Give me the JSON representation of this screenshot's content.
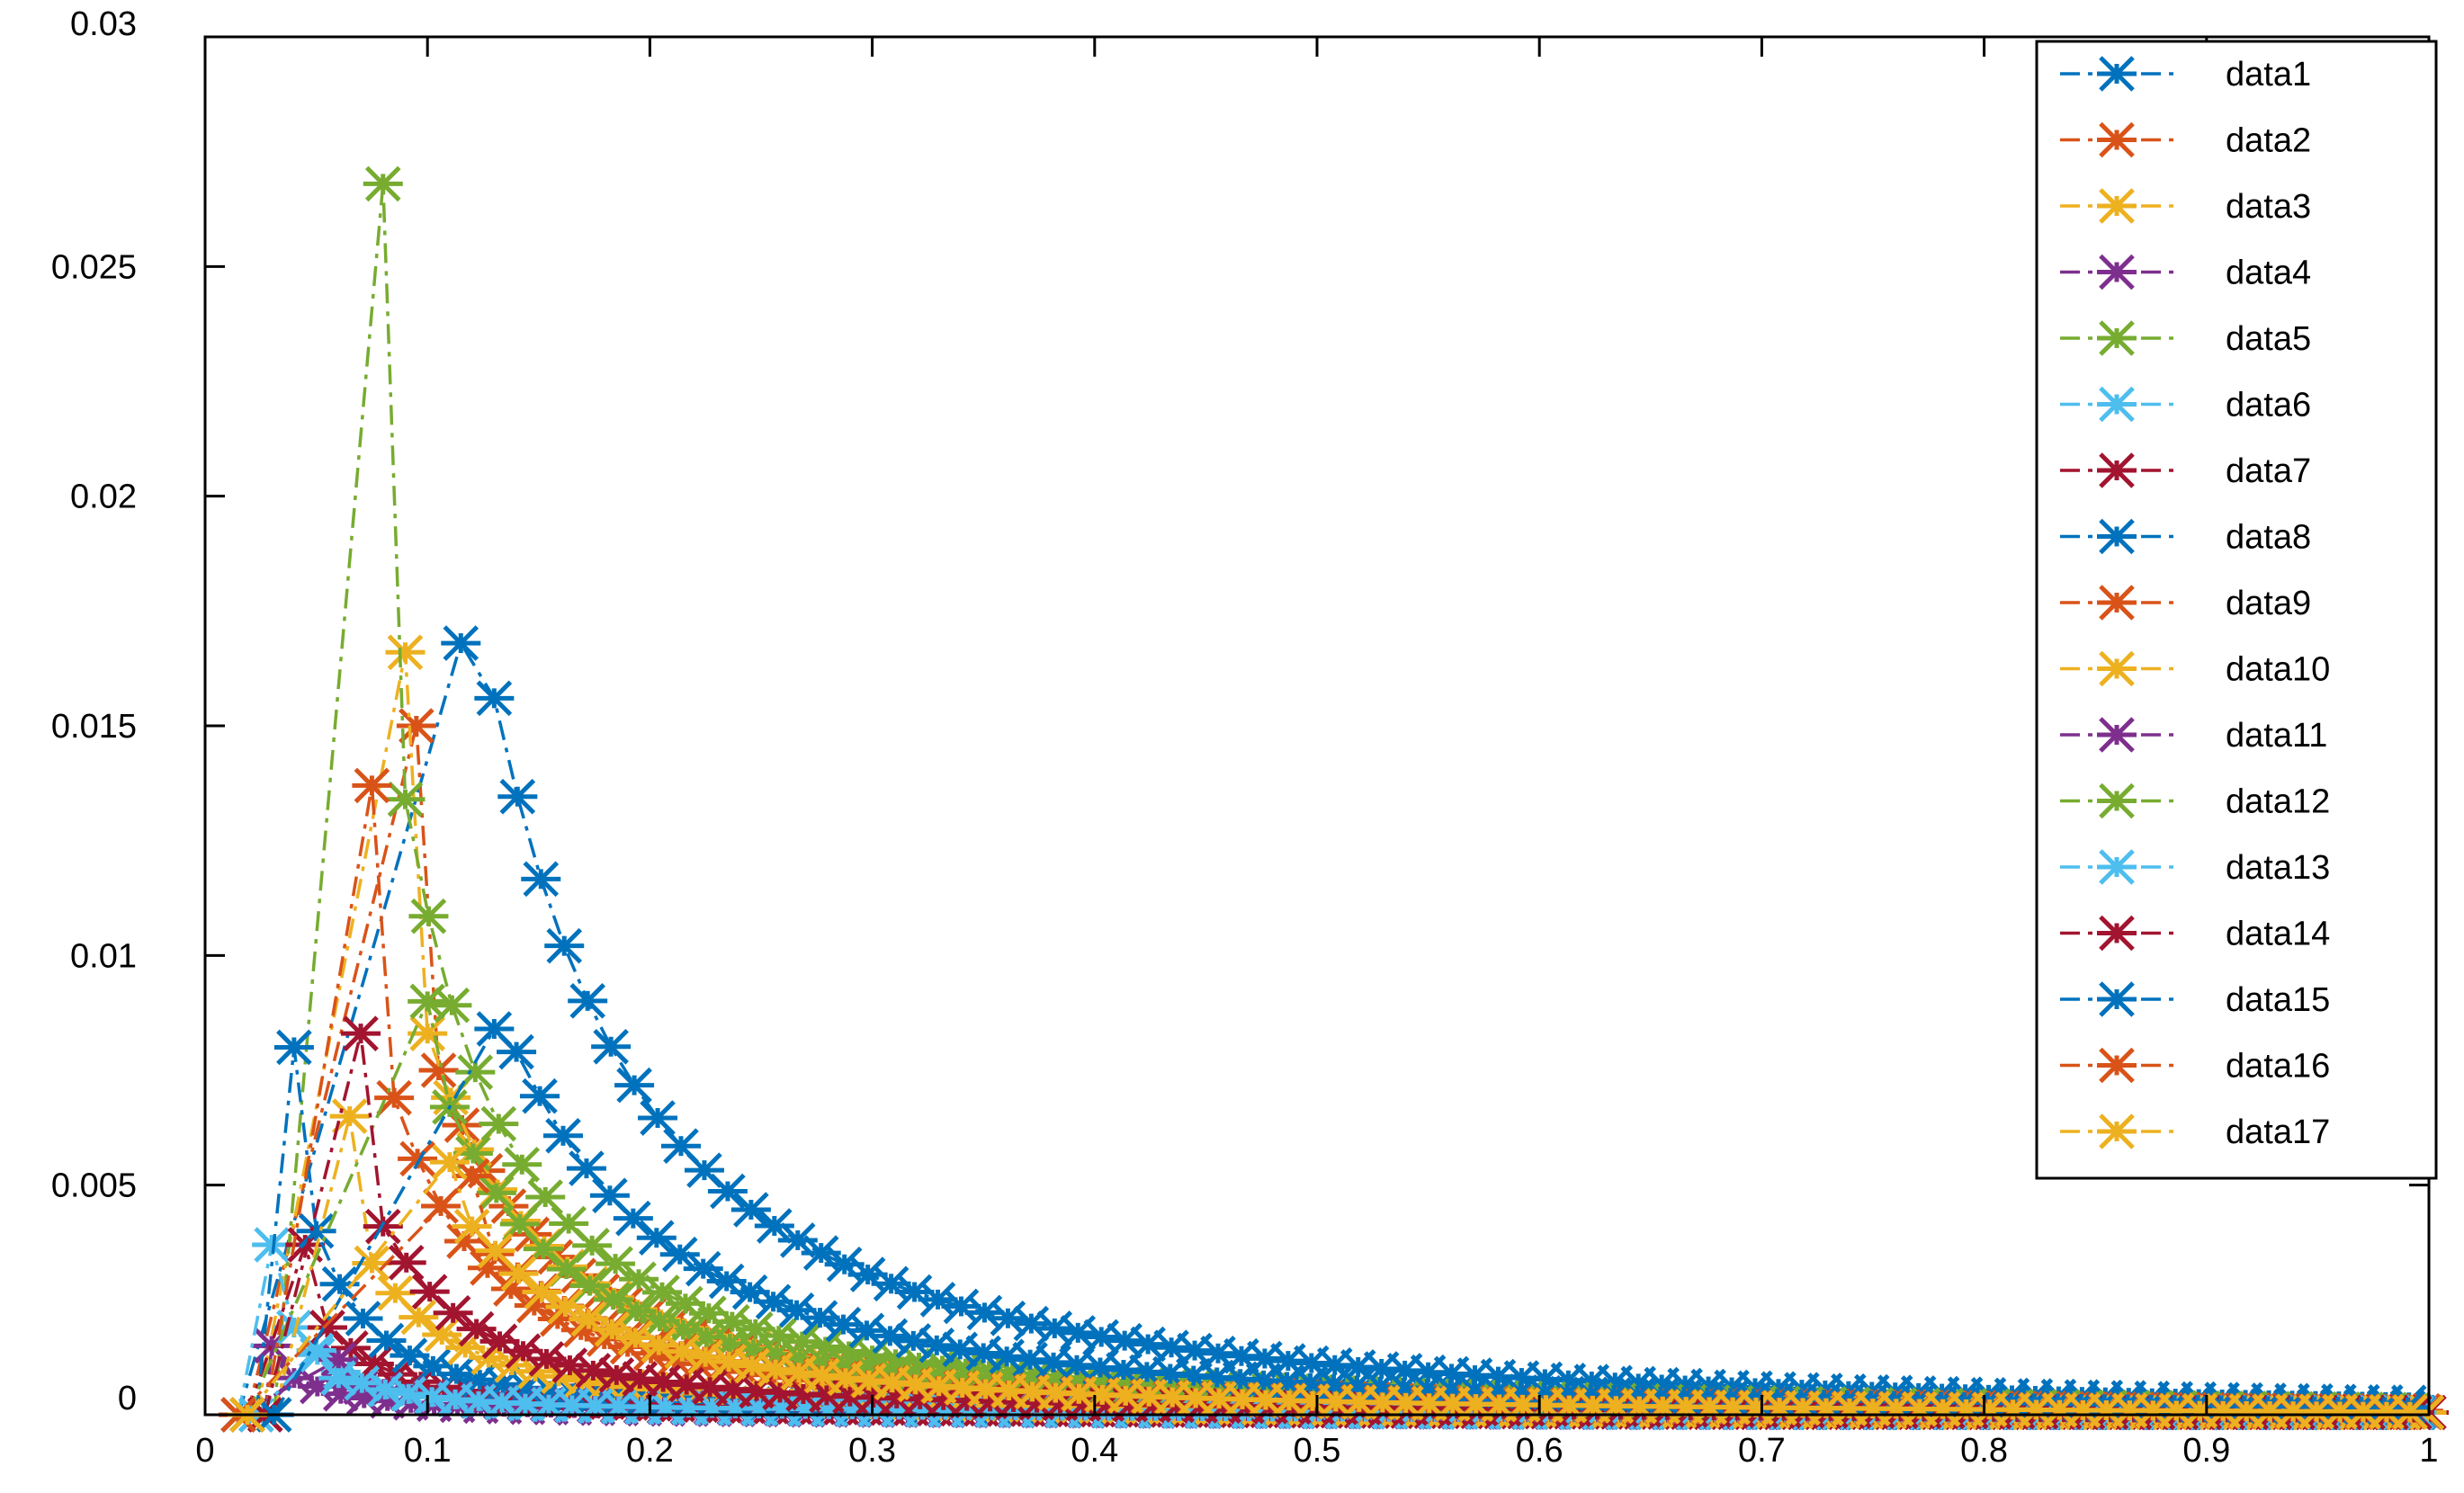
{
  "chart_data": {
    "type": "line",
    "title": "",
    "xlabel": "",
    "ylabel": "",
    "xlim": [
      0,
      1
    ],
    "ylim": [
      0,
      0.03
    ],
    "xticks": [
      0,
      0.1,
      0.2,
      0.3,
      0.4,
      0.5,
      0.6,
      0.7,
      0.8,
      0.9,
      1
    ],
    "xtick_labels": [
      "0",
      "0.1",
      "0.2",
      "0.3",
      "0.4",
      "0.5",
      "0.6",
      "0.7",
      "0.8",
      "0.9",
      "1"
    ],
    "yticks": [
      0,
      0.005,
      0.01,
      0.015,
      0.02,
      0.025,
      0.03
    ],
    "ytick_labels": [
      "0",
      "0.005",
      "0.01",
      "0.015",
      "0.02",
      "0.025",
      "0.03"
    ],
    "grid": false,
    "legend_position": "top-right",
    "marker": "asterisk",
    "line_style": "dash-dot",
    "series": [
      {
        "name": "data1",
        "color": "#0072BD",
        "peak_x": 0.115,
        "peak_y": 0.0168,
        "decay_x": 0.13,
        "decay_y": 0.0156
      },
      {
        "name": "data2",
        "color": "#D95319",
        "peak_x": 0.095,
        "peak_y": 0.015,
        "decay_x": 0.105,
        "decay_y": 0.0075
      },
      {
        "name": "data3",
        "color": "#EDB120",
        "peak_x": 0.09,
        "peak_y": 0.0166,
        "decay_x": 0.1,
        "decay_y": 0.0083
      },
      {
        "name": "data4",
        "color": "#7E2F8E",
        "peak_x": 0.03,
        "peak_y": 0.0015,
        "decay_x": 0.04,
        "decay_y": 0.0008
      },
      {
        "name": "data5",
        "color": "#77AC30",
        "peak_x": 0.08,
        "peak_y": 0.0268,
        "decay_x": 0.09,
        "decay_y": 0.0134
      },
      {
        "name": "data6",
        "color": "#4DBEEE",
        "peak_x": 0.03,
        "peak_y": 0.0037,
        "decay_x": 0.04,
        "decay_y": 0.0019
      },
      {
        "name": "data7",
        "color": "#A2142F",
        "peak_x": 0.045,
        "peak_y": 0.0037,
        "decay_x": 0.055,
        "decay_y": 0.0019
      },
      {
        "name": "data8",
        "color": "#0072BD",
        "peak_x": 0.04,
        "peak_y": 0.008,
        "decay_x": 0.05,
        "decay_y": 0.004
      },
      {
        "name": "data9",
        "color": "#D95319",
        "peak_x": 0.075,
        "peak_y": 0.0137,
        "decay_x": 0.085,
        "decay_y": 0.0069
      },
      {
        "name": "data10",
        "color": "#EDB120",
        "peak_x": 0.065,
        "peak_y": 0.0065,
        "decay_x": 0.075,
        "decay_y": 0.0033
      },
      {
        "name": "data11",
        "color": "#7E2F8E",
        "peak_x": 0.06,
        "peak_y": 0.0012,
        "decay_x": 0.07,
        "decay_y": 0.0006
      },
      {
        "name": "data12",
        "color": "#77AC30",
        "peak_x": 0.1,
        "peak_y": 0.009,
        "decay_x": 0.11,
        "decay_y": 0.0067
      },
      {
        "name": "data13",
        "color": "#4DBEEE",
        "peak_x": 0.05,
        "peak_y": 0.0014,
        "decay_x": 0.06,
        "decay_y": 0.0008
      },
      {
        "name": "data14",
        "color": "#A2142F",
        "peak_x": 0.07,
        "peak_y": 0.0083,
        "decay_x": 0.08,
        "decay_y": 0.0041
      },
      {
        "name": "data15",
        "color": "#0072BD",
        "peak_x": 0.13,
        "peak_y": 0.0084,
        "decay_x": 0.14,
        "decay_y": 0.0079
      },
      {
        "name": "data16",
        "color": "#D95319",
        "peak_x": 0.12,
        "peak_y": 0.0052,
        "decay_x": 0.13,
        "decay_y": 0.0035
      },
      {
        "name": "data17",
        "color": "#EDB120",
        "peak_x": 0.11,
        "peak_y": 0.0055,
        "decay_x": 0.12,
        "decay_y": 0.0041
      }
    ]
  }
}
